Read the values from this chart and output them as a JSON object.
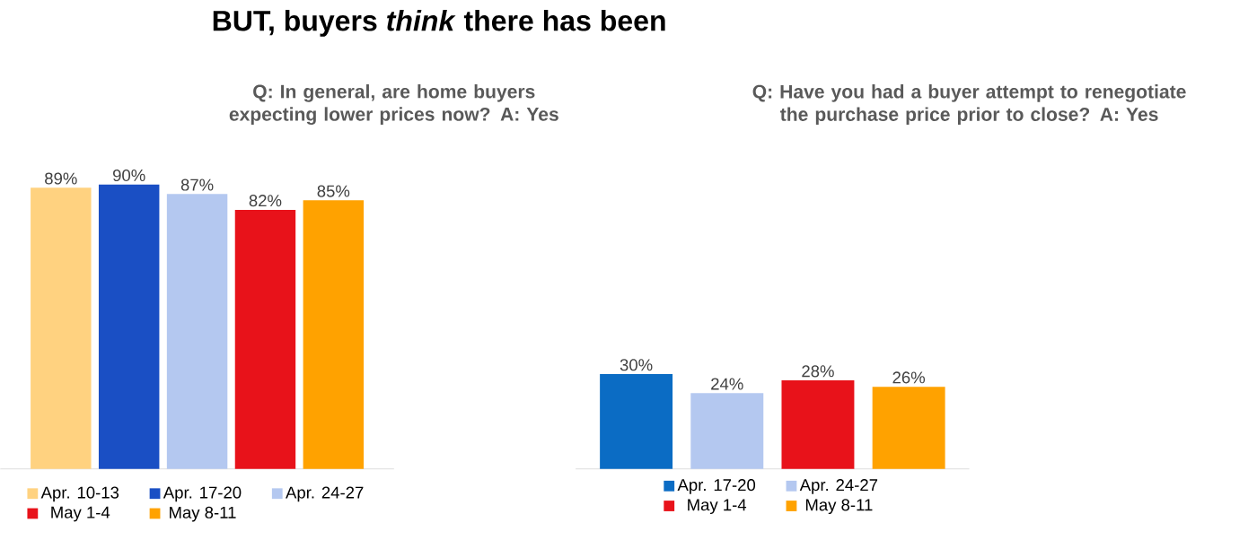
{
  "chart_data": [
    {
      "type": "bar",
      "title": "BUT, buyers *think* there has been",
      "subtitle": "Q: In general, are home buyers expecting lower prices now? A: Yes",
      "categories": [
        null
      ],
      "series": [
        {
          "name": "Apr. 10-13",
          "color": "#ffd280",
          "values": [
            89
          ],
          "value_labels": [
            "89%"
          ]
        },
        {
          "name": "Apr. 17-20",
          "color": "#1a4fc4",
          "values": [
            90
          ],
          "value_labels": [
            "90%"
          ]
        },
        {
          "name": "Apr. 24-27",
          "color": "#b4c8f0",
          "values": [
            87
          ],
          "value_labels": [
            "87%"
          ]
        },
        {
          "name": "May 1-4",
          "color": "#e8121a",
          "values": [
            82
          ],
          "value_labels": [
            "82%"
          ]
        },
        {
          "name": "May 8-11",
          "color": "#ffa200",
          "values": [
            85
          ],
          "value_labels": [
            "85%"
          ]
        }
      ],
      "legend": "bottom"
    },
    {
      "type": "bar",
      "subtitle": "Q: Have you had a buyer attempt to renegotiate the purchase price prior to close? A: Yes",
      "categories": [
        null
      ],
      "series": [
        {
          "name": "Apr. 17-20",
          "color": "#0b6cc4",
          "values": [
            30
          ],
          "value_labels": [
            "30%"
          ]
        },
        {
          "name": "Apr. 24-27",
          "color": "#b4c8f0",
          "values": [
            24
          ],
          "value_labels": [
            "24%"
          ]
        },
        {
          "name": "May 1-4",
          "color": "#e8121a",
          "values": [
            28
          ],
          "value_labels": [
            "28%"
          ]
        },
        {
          "name": "May 8-11",
          "color": "#ffa200",
          "values": [
            26
          ],
          "value_labels": [
            "26%"
          ]
        }
      ],
      "legend": "bottom"
    }
  ]
}
